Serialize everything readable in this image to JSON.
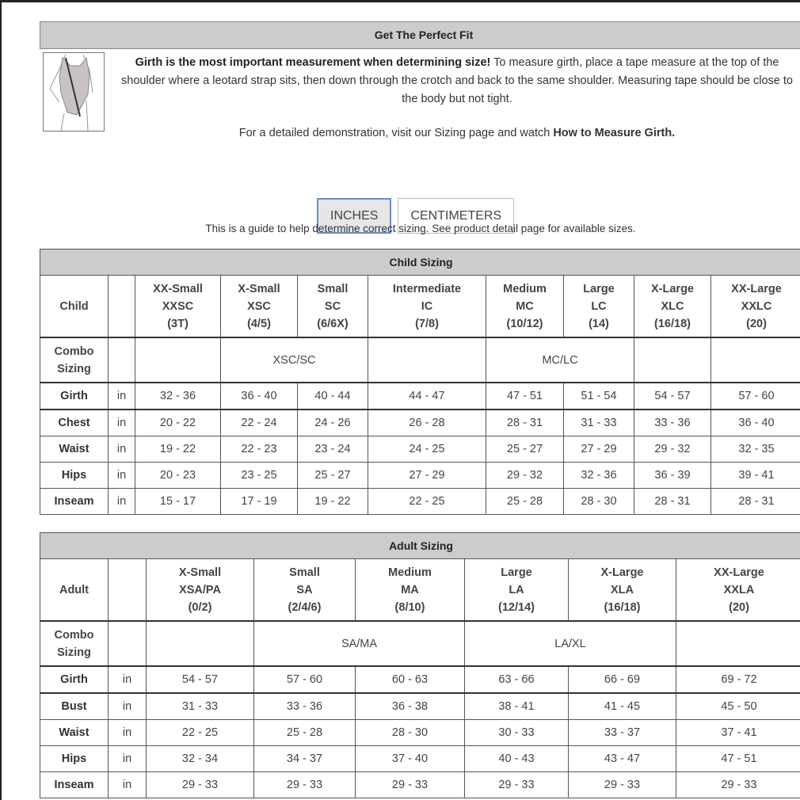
{
  "fit": {
    "title": "Get The Perfect Fit",
    "intro_bold": "Girth is the most important measurement when determining size!",
    "intro_text": " To measure girth, place a tape measure at the top of the shoulder where a leotard strap sits, then down through the crotch and back to the same shoulder. Measuring tape should be close to the body but not tight.",
    "demo_text": "For a detailed demonstration, visit our Sizing page and watch ",
    "demo_link": "How to Measure Girth."
  },
  "units": {
    "inches": "INCHES",
    "centimeters": "CENTIMETERS",
    "selected": "INCHES"
  },
  "guide": "This is a guide to help determine correct sizing. See product detail page for available sizes.",
  "colors": {
    "header_bg": "#cccccc",
    "active_border": "#6a8fc0"
  },
  "child": {
    "title": "Child Sizing",
    "corner": "Child",
    "sizes": [
      [
        "XX-Small",
        "XXSC",
        "(3T)"
      ],
      [
        "X-Small",
        "XSC",
        "(4/5)"
      ],
      [
        "Small",
        "SC",
        "(6/6X)"
      ],
      [
        "Intermediate",
        "IC",
        "(7/8)"
      ],
      [
        "Medium",
        "MC",
        "(10/12)"
      ],
      [
        "Large",
        "LC",
        "(14)"
      ],
      [
        "X-Large",
        "XLC",
        "(16/18)"
      ],
      [
        "XX-Large",
        "XXLC",
        "(20)"
      ]
    ],
    "combo_label": [
      "Combo",
      "Sizing"
    ],
    "combo": [
      {
        "text": "",
        "span": 1
      },
      {
        "text": "XSC/SC",
        "span": 2
      },
      {
        "text": "",
        "span": 1
      },
      {
        "text": "MC/LC",
        "span": 2
      },
      {
        "text": "",
        "span": 1
      },
      {
        "text": "",
        "span": 1
      }
    ],
    "rows": [
      {
        "label": "Girth",
        "unit": "in",
        "values": [
          "32 - 36",
          "36 - 40",
          "40 - 44",
          "44 - 47",
          "47 - 51",
          "51 - 54",
          "54 - 57",
          "57 - 60"
        ]
      },
      {
        "label": "Chest",
        "unit": "in",
        "values": [
          "20 - 22",
          "22 - 24",
          "24 - 26",
          "26 - 28",
          "28 - 31",
          "31 - 33",
          "33 - 36",
          "36 - 40"
        ]
      },
      {
        "label": "Waist",
        "unit": "in",
        "values": [
          "19 - 22",
          "22 - 23",
          "23 - 24",
          "24 - 25",
          "25 - 27",
          "27 - 29",
          "29 - 32",
          "32 - 35"
        ]
      },
      {
        "label": "Hips",
        "unit": "in",
        "values": [
          "20 - 23",
          "23 - 25",
          "25 - 27",
          "27 - 29",
          "29 - 32",
          "32 - 36",
          "36 - 39",
          "39 - 41"
        ]
      },
      {
        "label": "Inseam",
        "unit": "in",
        "values": [
          "15 - 17",
          "17 - 19",
          "19 - 22",
          "22 - 25",
          "25 - 28",
          "28 - 30",
          "28 - 31",
          "28 - 31"
        ]
      }
    ]
  },
  "adult": {
    "title": "Adult Sizing",
    "corner": "Adult",
    "sizes": [
      [
        "X-Small",
        "XSA/PA",
        "(0/2)"
      ],
      [
        "Small",
        "SA",
        "(2/4/6)"
      ],
      [
        "Medium",
        "MA",
        "(8/10)"
      ],
      [
        "Large",
        "LA",
        "(12/14)"
      ],
      [
        "X-Large",
        "XLA",
        "(16/18)"
      ],
      [
        "XX-Large",
        "XXLA",
        "(20)"
      ]
    ],
    "combo_label": [
      "Combo",
      "Sizing"
    ],
    "combo": [
      {
        "text": "",
        "span": 1
      },
      {
        "text": "SA/MA",
        "span": 2
      },
      {
        "text": "LA/XL",
        "span": 2
      },
      {
        "text": "",
        "span": 1
      }
    ],
    "rows": [
      {
        "label": "Girth",
        "unit": "in",
        "values": [
          "54 - 57",
          "57 - 60",
          "60 - 63",
          "63 - 66",
          "66 - 69",
          "69 - 72"
        ]
      },
      {
        "label": "Bust",
        "unit": "in",
        "values": [
          "31 - 33",
          "33 - 36",
          "36 - 38",
          "38 - 41",
          "41 - 45",
          "45 - 50"
        ]
      },
      {
        "label": "Waist",
        "unit": "in",
        "values": [
          "22 - 25",
          "25 - 28",
          "28 - 30",
          "30 - 33",
          "33 - 37",
          "37 - 41"
        ]
      },
      {
        "label": "Hips",
        "unit": "in",
        "values": [
          "32 - 34",
          "34 - 37",
          "37 - 40",
          "40 - 43",
          "43 - 47",
          "47 - 51"
        ]
      },
      {
        "label": "Inseam",
        "unit": "in",
        "values": [
          "29 - 33",
          "29 - 33",
          "29 - 33",
          "29 - 33",
          "29 - 33",
          "29 - 33"
        ]
      }
    ]
  }
}
